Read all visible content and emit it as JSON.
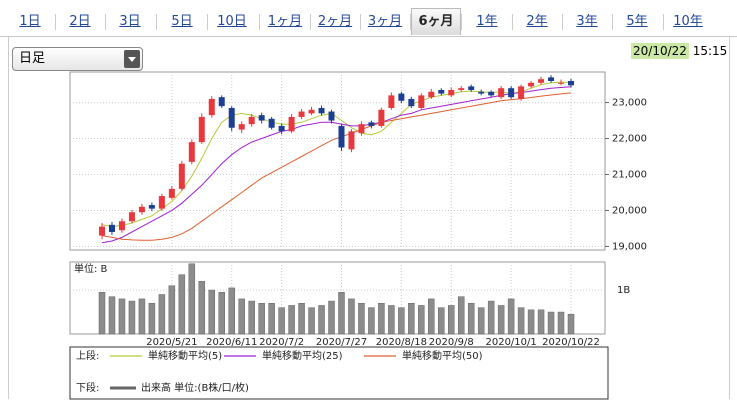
{
  "tabs": [
    "1日",
    "2日",
    "3日",
    "5日",
    "10日",
    "1ヶ月",
    "2ヶ月",
    "3ヶ月",
    "6ヶ月",
    "1年",
    "2年",
    "3年",
    "5年",
    "10年"
  ],
  "selected_tab": 8,
  "dropdown": "日足",
  "timestamp": {
    "date": "20/10/22",
    "time": "15:15"
  },
  "chart_data": [
    {
      "type": "candlestick",
      "open": [
        19300,
        19600,
        19450,
        19700,
        19950,
        20150,
        20050,
        20350,
        20600,
        21350,
        21900,
        22650,
        23150,
        22850,
        22250,
        22400,
        22650,
        22550,
        22350,
        22200,
        22600,
        22700,
        22850,
        22750,
        22350,
        21700,
        22150,
        22450,
        22350,
        22850,
        23250,
        23100,
        22850,
        23150,
        23350,
        23200,
        23350,
        23450,
        23300,
        23300,
        23150,
        23400,
        23100,
        23450,
        23550,
        23700,
        23550,
        23600
      ],
      "high": [
        19650,
        19680,
        19780,
        20020,
        20180,
        20220,
        20460,
        20680,
        21380,
        21980,
        22700,
        23180,
        23200,
        22900,
        22480,
        22680,
        22720,
        22600,
        22420,
        22680,
        22820,
        22880,
        22920,
        22800,
        22400,
        22260,
        22480,
        22500,
        22860,
        23280,
        23300,
        23160,
        23260,
        23380,
        23400,
        23420,
        23460,
        23500,
        23360,
        23340,
        23460,
        23460,
        23500,
        23600,
        23720,
        23760,
        23640,
        23660
      ],
      "low": [
        19200,
        19320,
        19380,
        19640,
        19880,
        19980,
        19990,
        20300,
        20550,
        21280,
        21850,
        22580,
        22850,
        22200,
        22150,
        22330,
        22420,
        22250,
        22120,
        22150,
        22540,
        22650,
        22640,
        22420,
        21650,
        21620,
        22080,
        22280,
        22300,
        22800,
        22980,
        22850,
        22800,
        23100,
        23200,
        23150,
        23300,
        23300,
        23200,
        23150,
        23100,
        23100,
        23050,
        23400,
        23500,
        23550,
        23480,
        23420
      ],
      "close": [
        19550,
        19400,
        19700,
        19950,
        20100,
        20050,
        20400,
        20600,
        21300,
        21900,
        22600,
        23100,
        22900,
        22300,
        22400,
        22600,
        22500,
        22300,
        22200,
        22600,
        22750,
        22800,
        22700,
        22500,
        21750,
        22200,
        22400,
        22350,
        22800,
        23200,
        23050,
        22900,
        23200,
        23300,
        23250,
        23350,
        23400,
        23350,
        23250,
        23200,
        23400,
        23150,
        23450,
        23550,
        23650,
        23600,
        23550,
        23480
      ],
      "up_color": "#e8383d",
      "down_color": "#1c3f94",
      "series": [
        {
          "name": "単純移動平均(5)",
          "color": "#b5c93a",
          "values": [
            19600,
            19550,
            19580,
            19650,
            19750,
            19850,
            20050,
            20250,
            20550,
            20950,
            21450,
            22000,
            22450,
            22650,
            22700,
            22650,
            22550,
            22450,
            22400,
            22400,
            22450,
            22550,
            22650,
            22700,
            22500,
            22300,
            22150,
            22100,
            22200,
            22450,
            22700,
            22950,
            23050,
            23150,
            23200,
            23250,
            23300,
            23320,
            23300,
            23280,
            23300,
            23250,
            23300,
            23400,
            23500,
            23550,
            23570,
            23560
          ]
        },
        {
          "name": "単純移動平均(25)",
          "color": "#a020d0",
          "values": [
            19100,
            19150,
            19250,
            19400,
            19550,
            19700,
            19850,
            20000,
            20200,
            20450,
            20700,
            21000,
            21300,
            21550,
            21750,
            21900,
            22000,
            22100,
            22200,
            22250,
            22350,
            22400,
            22450,
            22450,
            22400,
            22350,
            22350,
            22400,
            22450,
            22550,
            22650,
            22700,
            22800,
            22850,
            22900,
            22950,
            23000,
            23050,
            23100,
            23150,
            23200,
            23250,
            23280,
            23320,
            23360,
            23400,
            23420,
            23440
          ]
        },
        {
          "name": "単純移動平均(50)",
          "color": "#e06030",
          "values": [
            19300,
            19250,
            19200,
            19180,
            19170,
            19170,
            19200,
            19250,
            19350,
            19500,
            19700,
            19900,
            20100,
            20300,
            20500,
            20700,
            20900,
            21050,
            21200,
            21350,
            21500,
            21650,
            21800,
            21950,
            22050,
            22150,
            22250,
            22350,
            22450,
            22500,
            22550,
            22600,
            22650,
            22700,
            22750,
            22800,
            22850,
            22900,
            22950,
            23000,
            23050,
            23080,
            23110,
            23140,
            23180,
            23210,
            23240,
            23270
          ]
        }
      ],
      "ylim": [
        18900,
        23850
      ],
      "yticks": [
        {
          "value": 19000,
          "label": "19,000"
        },
        {
          "value": 20000,
          "label": "20,000"
        },
        {
          "value": 21000,
          "label": "21,000"
        },
        {
          "value": 22000,
          "label": "22,000"
        },
        {
          "value": 23000,
          "label": "23,000"
        }
      ],
      "grid": true,
      "legend_label": "上段:"
    },
    {
      "type": "bar",
      "unit_label": "単位: B",
      "categories": [
        null,
        null,
        null,
        null,
        null,
        null,
        null,
        "2020/5/21",
        null,
        null,
        null,
        null,
        null,
        "2020/6/11",
        null,
        null,
        null,
        null,
        "2020/7/2",
        null,
        null,
        null,
        null,
        null,
        "2020/7/27",
        null,
        null,
        null,
        null,
        null,
        "2020/8/18",
        null,
        null,
        null,
        null,
        "2020/9/8",
        null,
        null,
        null,
        null,
        null,
        "2020/10/1",
        null,
        null,
        null,
        null,
        null,
        "2020/10/22"
      ],
      "series": [
        {
          "name": "出来高 単位:(B株/口/枚)",
          "color": "#8c8c8c",
          "values": [
            0.95,
            0.85,
            0.8,
            0.75,
            0.8,
            0.7,
            0.9,
            1.1,
            1.35,
            1.6,
            1.2,
            1.0,
            0.95,
            1.05,
            0.8,
            0.75,
            0.7,
            0.7,
            0.6,
            0.65,
            0.7,
            0.6,
            0.65,
            0.75,
            0.95,
            0.8,
            0.7,
            0.6,
            0.7,
            0.65,
            0.6,
            0.7,
            0.65,
            0.8,
            0.6,
            0.65,
            0.85,
            0.7,
            0.6,
            0.75,
            0.65,
            0.8,
            0.6,
            0.55,
            0.55,
            0.5,
            0.5,
            0.45
          ]
        }
      ],
      "ylim": [
        0,
        1.64
      ],
      "yticks": [
        {
          "value": 1,
          "label": "1B"
        }
      ],
      "grid": true,
      "legend_label": "下段:"
    }
  ]
}
